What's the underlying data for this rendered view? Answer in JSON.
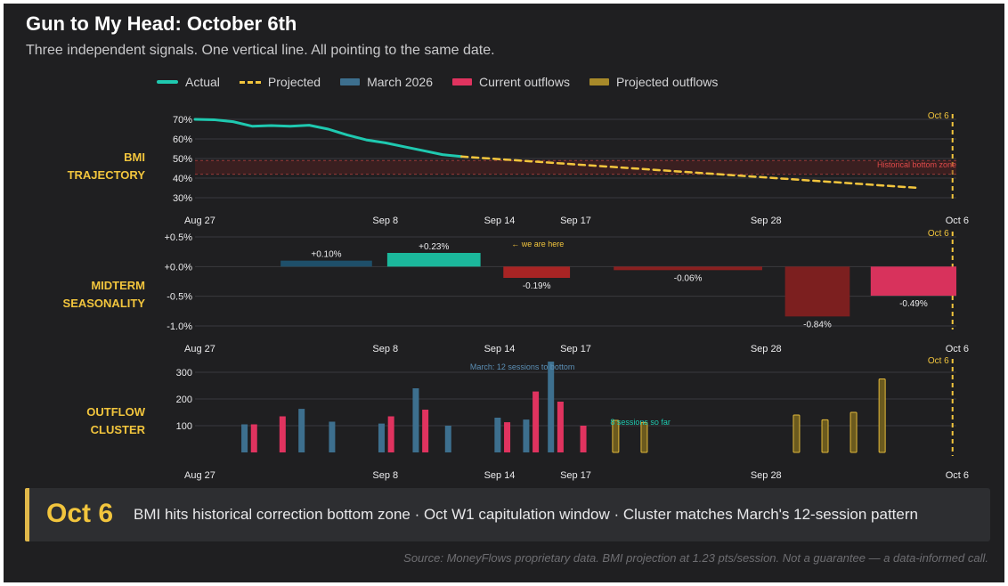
{
  "header": {
    "title": "Gun to My Head: October 6th",
    "subtitle": "Three independent signals. One vertical line. All pointing to the same date."
  },
  "legend": [
    {
      "label": "Actual",
      "style": "line",
      "color": "#1fc9b0"
    },
    {
      "label": "Projected",
      "style": "dash",
      "color": "#f2c53d"
    },
    {
      "label": "March 2026",
      "style": "box",
      "color": "#3d6f8e"
    },
    {
      "label": "Current outflows",
      "style": "box",
      "color": "#e0335f"
    },
    {
      "label": "Projected outflows",
      "style": "box",
      "color": "#a88a2a"
    }
  ],
  "colors": {
    "actual": "#1fc9b0",
    "projected": "#f2c53d",
    "march": "#3d6f8e",
    "current": "#e0335f",
    "projected_outflow_fill": "#6b5a1e",
    "projected_outflow_stroke": "#e2b93b",
    "gold_label": "#f2c53d",
    "zone": "#e04a4a",
    "neg_dark": "#8a2020",
    "axis_text": "#ececee",
    "grid": "#3a3a3e"
  },
  "chart_data": [
    {
      "type": "line",
      "panel_label": [
        "BMI",
        "TRAJECTORY"
      ],
      "x_domain": [
        0,
        40
      ],
      "xticks": [
        {
          "x": 0,
          "label": "Aug 27"
        },
        {
          "x": 10,
          "label": "Sep 8"
        },
        {
          "x": 16,
          "label": "Sep 14"
        },
        {
          "x": 20,
          "label": "Sep 17"
        },
        {
          "x": 30,
          "label": "Sep 28"
        },
        {
          "x": 38,
          "label": "Oct 6"
        }
      ],
      "ylim": [
        30,
        70
      ],
      "yticks": [
        "70%",
        "60%",
        "50%",
        "40%",
        "30%"
      ],
      "ytick_values": [
        70,
        60,
        50,
        40,
        30
      ],
      "series": [
        {
          "name": "Actual",
          "points": [
            [
              0,
              70
            ],
            [
              1,
              69.8
            ],
            [
              2,
              68.8
            ],
            [
              3,
              66.5
            ],
            [
              4,
              66.8
            ],
            [
              5,
              66.5
            ],
            [
              6,
              67
            ],
            [
              7,
              65
            ],
            [
              8,
              62
            ],
            [
              9,
              59.5
            ],
            [
              10,
              58
            ],
            [
              11,
              56
            ],
            [
              12,
              54
            ],
            [
              13,
              52
            ],
            [
              14,
              51
            ]
          ]
        },
        {
          "name": "Projected",
          "points": [
            [
              14,
              51
            ],
            [
              38,
              35
            ]
          ]
        }
      ],
      "bottom_zone": {
        "label": "Historical bottom zone",
        "range": [
          42,
          49
        ]
      },
      "vline": {
        "x": 38,
        "label": "Oct 6"
      }
    },
    {
      "type": "bar",
      "panel_label": [
        "MIDTERM",
        "SEASONALITY"
      ],
      "x_domain": [
        0,
        40
      ],
      "xticks": [
        {
          "x": 0,
          "label": "Aug 27"
        },
        {
          "x": 10,
          "label": "Sep 8"
        },
        {
          "x": 16,
          "label": "Sep 14"
        },
        {
          "x": 20,
          "label": "Sep 17"
        },
        {
          "x": 30,
          "label": "Sep 28"
        },
        {
          "x": 38,
          "label": "Oct 6"
        }
      ],
      "ylim": [
        -1.0,
        0.5
      ],
      "yticks": [
        "+0.5%",
        "+0.0%",
        "-0.5%",
        "-1.0%"
      ],
      "ytick_values": [
        0.5,
        0,
        -0.5,
        -1.0
      ],
      "bars": [
        {
          "x0": 4.5,
          "x1": 9.3,
          "value": 0.1,
          "label": "+0.10%",
          "color": "#1e4f6a"
        },
        {
          "x0": 10.1,
          "x1": 15,
          "value": 0.23,
          "label": "+0.23%",
          "color": "#1bb89c"
        },
        {
          "x0": 16.2,
          "x1": 19.7,
          "value": -0.19,
          "label": "-0.19%",
          "color": "#a82424"
        },
        {
          "x0": 22,
          "x1": 29.8,
          "value": -0.06,
          "label": "-0.06%",
          "color": "#8a2020"
        },
        {
          "x0": 31,
          "x1": 34.4,
          "value": -0.84,
          "label": "-0.84%",
          "color": "#7c1f1f"
        },
        {
          "x0": 35.5,
          "x1": 40,
          "value": -0.49,
          "label": "-0.49%",
          "color": "#d8325c"
        }
      ],
      "annotation": {
        "x": 18,
        "text": "← we are here"
      },
      "vline": {
        "x": 38,
        "label": "Oct 6"
      }
    },
    {
      "type": "bar",
      "panel_label": [
        "OUTFLOW",
        "CLUSTER"
      ],
      "x_domain": [
        0,
        40
      ],
      "xticks": [
        {
          "x": 0,
          "label": "Aug 27"
        },
        {
          "x": 10,
          "label": "Sep 8"
        },
        {
          "x": 16,
          "label": "Sep 14"
        },
        {
          "x": 20,
          "label": "Sep 17"
        },
        {
          "x": 30,
          "label": "Sep 28"
        },
        {
          "x": 38,
          "label": "Oct 6"
        }
      ],
      "ylim": [
        0,
        330
      ],
      "yticks": [
        "300",
        "200",
        "100"
      ],
      "ytick_values": [
        300,
        200,
        100
      ],
      "bars": [
        {
          "x": 2.6,
          "value": 105,
          "group": "march"
        },
        {
          "x": 3.1,
          "value": 105,
          "group": "current"
        },
        {
          "x": 4.6,
          "value": 135,
          "group": "current"
        },
        {
          "x": 5.6,
          "value": 163,
          "group": "march"
        },
        {
          "x": 7.2,
          "value": 115,
          "group": "march"
        },
        {
          "x": 9.8,
          "value": 108,
          "group": "march"
        },
        {
          "x": 10.3,
          "value": 135,
          "group": "current"
        },
        {
          "x": 11.6,
          "value": 240,
          "group": "march"
        },
        {
          "x": 12.1,
          "value": 160,
          "group": "current"
        },
        {
          "x": 13.3,
          "value": 100,
          "group": "march"
        },
        {
          "x": 15.9,
          "value": 130,
          "group": "march"
        },
        {
          "x": 16.4,
          "value": 113,
          "group": "current"
        },
        {
          "x": 17.4,
          "value": 123,
          "group": "march"
        },
        {
          "x": 17.9,
          "value": 228,
          "group": "current"
        },
        {
          "x": 18.7,
          "value": 340,
          "group": "march"
        },
        {
          "x": 19.2,
          "value": 190,
          "group": "current"
        },
        {
          "x": 20.4,
          "value": 100,
          "group": "current"
        },
        {
          "x": 22.1,
          "value": 120,
          "group": "projected"
        },
        {
          "x": 23.6,
          "value": 112,
          "group": "projected"
        },
        {
          "x": 31.6,
          "value": 140,
          "group": "projected"
        },
        {
          "x": 33.1,
          "value": 122,
          "group": "projected"
        },
        {
          "x": 34.6,
          "value": 150,
          "group": "projected"
        },
        {
          "x": 36.1,
          "value": 275,
          "group": "projected"
        }
      ],
      "annotations": [
        {
          "x": 17.2,
          "text": "March: 12 sessions to bottom",
          "color": "#5b8fb5"
        },
        {
          "x": 22.1,
          "text": "8 sessions so far",
          "color": "#1fc9b0"
        }
      ],
      "vline": {
        "x": 38,
        "label": "Oct 6"
      }
    }
  ],
  "callout": {
    "date": "Oct 6",
    "text": "BMI hits historical correction bottom zone  ·  Oct W1 capitulation window  ·  Cluster matches March's 12-session pattern"
  },
  "footer": {
    "source": "Source: MoneyFlows proprietary data. BMI projection at 1.23 pts/session. Not a guarantee — a data-informed call."
  }
}
